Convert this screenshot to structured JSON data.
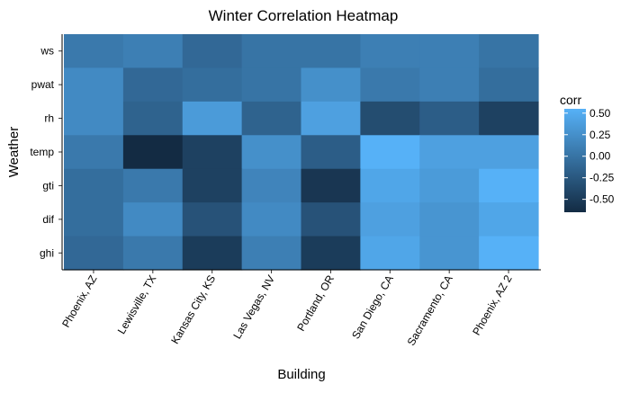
{
  "chart_data": {
    "type": "heatmap",
    "title": "Winter Correlation Heatmap",
    "xlabel": "Building",
    "ylabel": "Weather",
    "x_categories": [
      "Phoenix, AZ",
      "Lewisville, TX",
      "Kansas City, KS",
      "Las Vegas, NV",
      "Portland, OR",
      "San Diego, CA",
      "Sacramento, CA",
      "Phoenix, AZ 2"
    ],
    "y_categories": [
      "ws",
      "pwat",
      "rh",
      "temp",
      "gti",
      "dif",
      "ghi"
    ],
    "values": [
      [
        0.05,
        0.1,
        -0.1,
        0.0,
        0.0,
        0.1,
        0.1,
        0.0
      ],
      [
        0.2,
        -0.1,
        -0.05,
        0.0,
        0.25,
        0.05,
        0.1,
        -0.05
      ],
      [
        0.2,
        -0.15,
        0.35,
        -0.15,
        0.4,
        -0.35,
        -0.2,
        -0.45
      ],
      [
        0.05,
        -0.65,
        -0.45,
        0.25,
        -0.2,
        0.55,
        0.4,
        0.4
      ],
      [
        -0.05,
        0.05,
        -0.45,
        0.15,
        -0.55,
        0.45,
        0.35,
        0.55
      ],
      [
        -0.05,
        0.2,
        -0.3,
        0.2,
        -0.3,
        0.4,
        0.3,
        0.45
      ],
      [
        -0.1,
        0.05,
        -0.5,
        0.1,
        -0.5,
        0.45,
        0.3,
        0.55
      ]
    ],
    "legend": {
      "title": "corr",
      "ticks": [
        0.5,
        0.25,
        0.0,
        -0.25,
        -0.5
      ],
      "tick_labels": [
        "0.50",
        "0.25",
        "0.00",
        "-0.25",
        "-0.50"
      ],
      "range": [
        -0.65,
        0.55
      ],
      "low_color": "#132b43",
      "high_color": "#56b1f7",
      "placement": "right"
    },
    "grid": false
  }
}
